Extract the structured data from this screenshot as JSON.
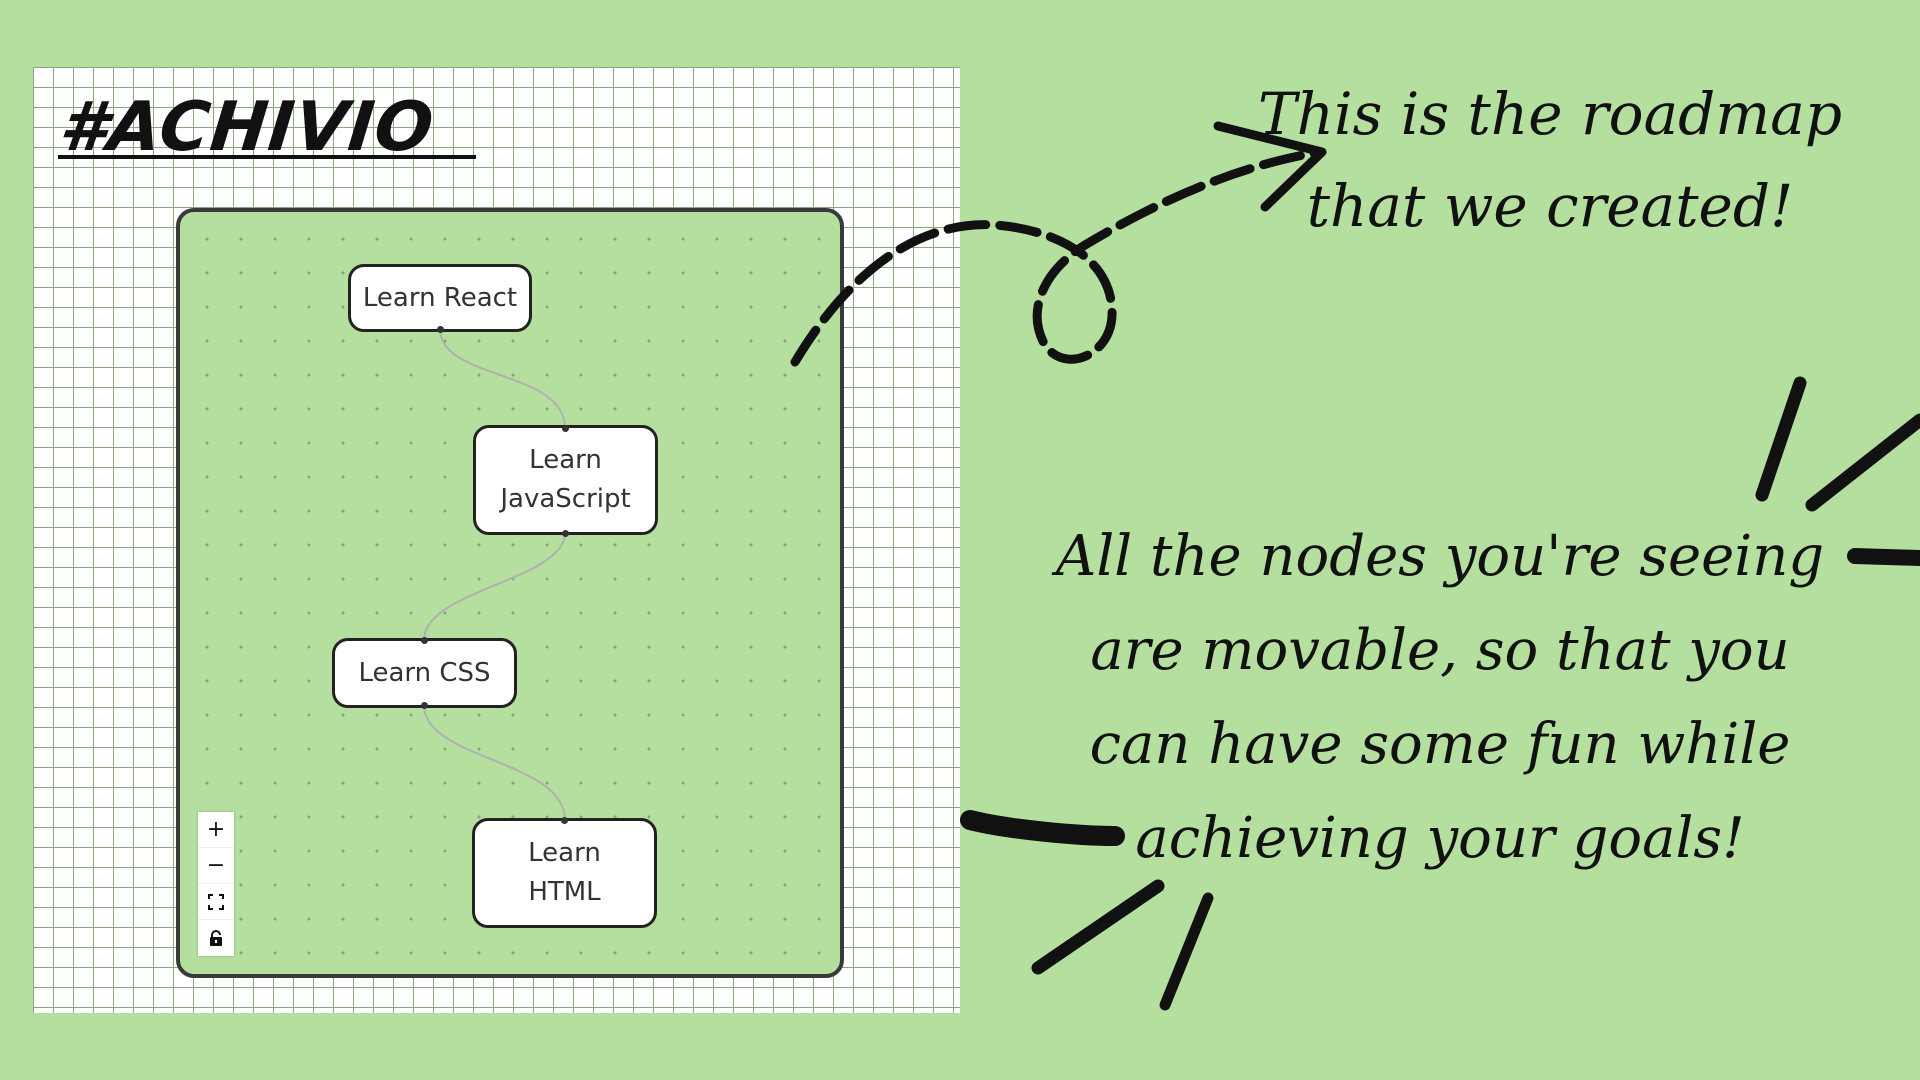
{
  "brand": {
    "name": "#ACHIVIO"
  },
  "flow": {
    "nodes": [
      {
        "id": "react",
        "label": "Learn React"
      },
      {
        "id": "javascript",
        "label": "Learn JavaScript"
      },
      {
        "id": "css",
        "label": "Learn CSS"
      },
      {
        "id": "html",
        "label": "Learn HTML"
      }
    ],
    "edges": [
      {
        "from": "react",
        "to": "javascript"
      },
      {
        "from": "javascript",
        "to": "css"
      },
      {
        "from": "css",
        "to": "html"
      }
    ]
  },
  "controls": {
    "zoom_in_icon": "plus-icon",
    "zoom_out_icon": "minus-icon",
    "fit_view_icon": "fit-view-icon",
    "lock_icon": "lock-icon"
  },
  "annotations": {
    "roadmap_note": "This is the roadmap that we created!",
    "nodes_note": "All the nodes you're seeing are movable, so that you can have some fun while achieving your goals!"
  },
  "colors": {
    "background": "#b5df9e",
    "node_fill": "#ffffff",
    "node_border": "#222222",
    "edge": "#b0b0b0"
  }
}
